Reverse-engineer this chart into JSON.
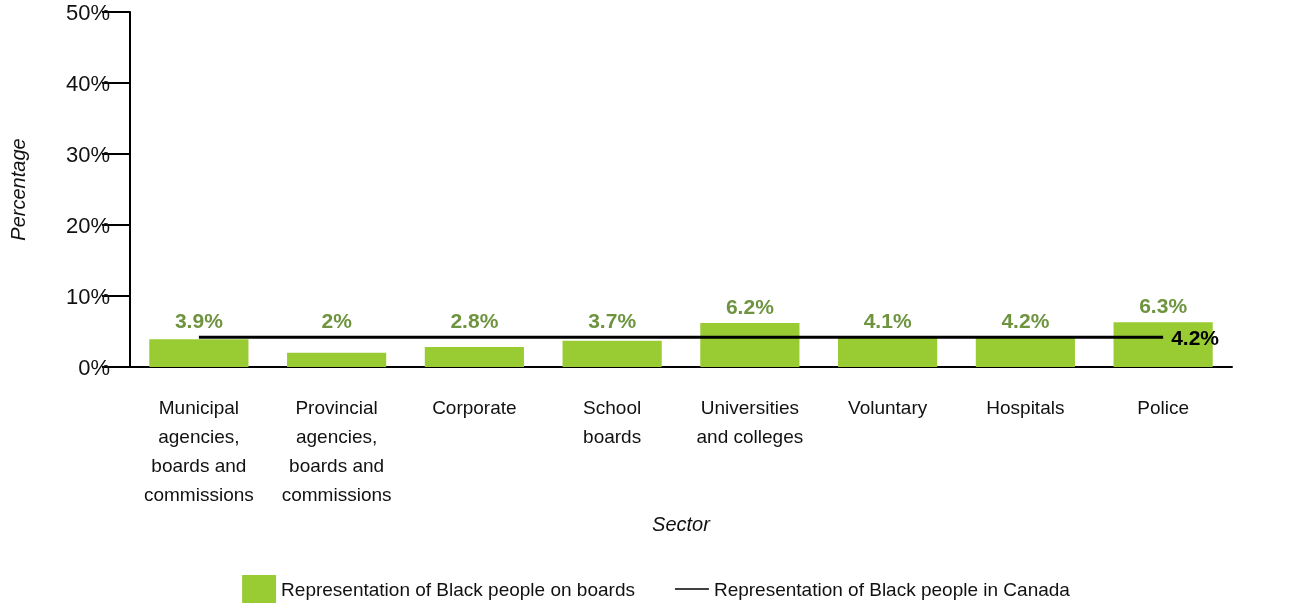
{
  "chart_data": {
    "type": "bar",
    "xlabel": "Sector",
    "ylabel": "Percentage",
    "categories": [
      "Municipal\nagencies,\nboards and\ncommissions",
      "Provincial\nagencies,\nboards and\ncommissions",
      "Corporate",
      "School\nboards",
      "Universities\nand colleges",
      "Voluntary",
      "Hospitals",
      "Police"
    ],
    "series": [
      {
        "name": "Representation of Black people on boards",
        "color": "#99cc33",
        "values": [
          3.9,
          2,
          2.8,
          3.7,
          6.2,
          4.1,
          4.2,
          6.3
        ],
        "value_labels": [
          "3.9%",
          "2%",
          "2.8%",
          "3.7%",
          "6.2%",
          "4.1%",
          "4.2%",
          "6.3%"
        ]
      },
      {
        "name": "Representation of Black people in Canada",
        "type": "line",
        "color": "#000000",
        "marker": "none",
        "values": [
          4.2,
          4.2,
          4.2,
          4.2,
          4.2,
          4.2,
          4.2,
          4.2
        ],
        "value_labels": [
          null,
          null,
          null,
          null,
          null,
          null,
          null,
          "4.2%"
        ]
      }
    ],
    "ylim": [
      0,
      50
    ],
    "yticks": [
      {
        "value": 0,
        "label": "0%"
      },
      {
        "value": 10,
        "label": "10%"
      },
      {
        "value": 20,
        "label": "20%"
      },
      {
        "value": 30,
        "label": "30%"
      },
      {
        "value": 40,
        "label": "40%"
      },
      {
        "value": 50,
        "label": "50%"
      }
    ],
    "grid": false,
    "legend": "bottom"
  }
}
